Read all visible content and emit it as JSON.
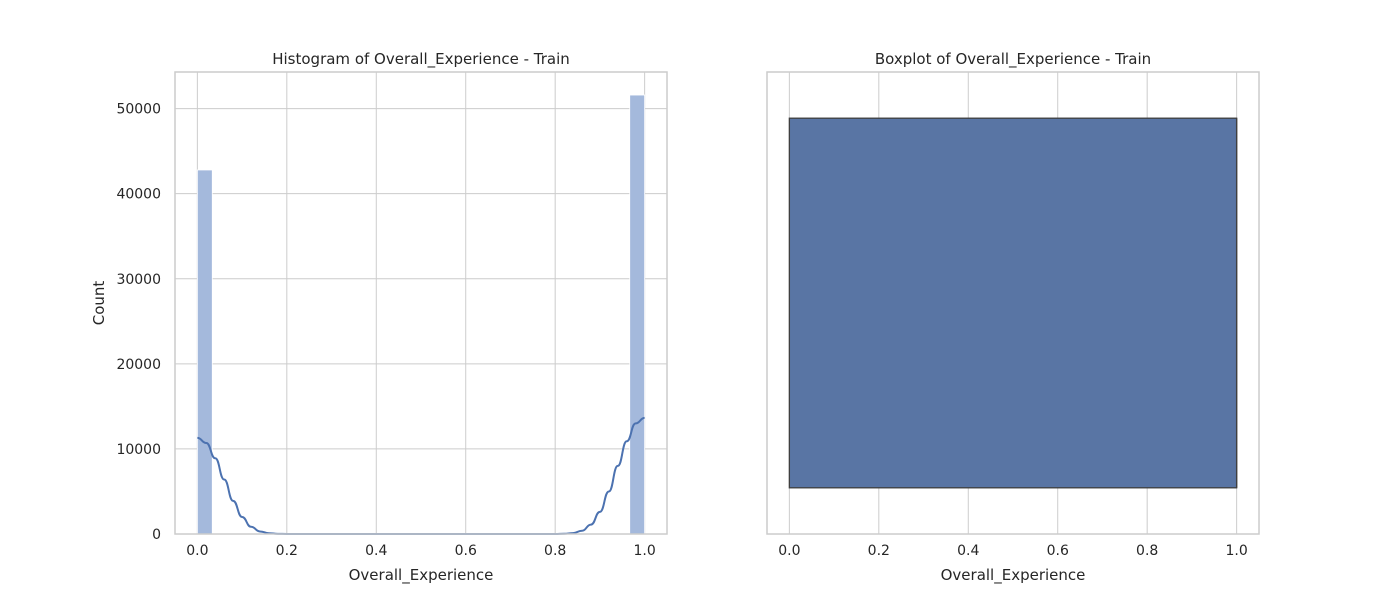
{
  "colors": {
    "hist_bar": "#a4b9dc",
    "kde_line": "#4c72b0",
    "box_fill": "#5975a4",
    "box_edge": "#3f3f3f",
    "grid": "#cccccc",
    "text": "#262626"
  },
  "chart_data": [
    {
      "type": "bar",
      "title": "Histogram of Overall_Experience - Train",
      "xlabel": "Overall_Experience",
      "ylabel": "Count",
      "xlim": [
        -0.05,
        1.05
      ],
      "ylim": [
        0,
        54300
      ],
      "grid": true,
      "xticks": [
        0.0,
        0.2,
        0.4,
        0.6,
        0.8,
        1.0
      ],
      "xtick_labels": [
        "0.0",
        "0.2",
        "0.4",
        "0.6",
        "0.8",
        "1.0"
      ],
      "yticks": [
        0,
        10000,
        20000,
        30000,
        40000,
        50000
      ],
      "ytick_labels": [
        "0",
        "10000",
        "20000",
        "30000",
        "40000",
        "50000"
      ],
      "bins": [
        {
          "x0": 0.0,
          "x1": 0.0333,
          "value": 42786
        },
        {
          "x0": 0.9667,
          "x1": 1.0,
          "value": 51593
        }
      ],
      "kde": {
        "x": [
          0.0,
          0.02,
          0.04,
          0.06,
          0.08,
          0.1,
          0.12,
          0.14,
          0.16,
          0.18,
          0.2,
          0.3,
          0.5,
          0.7,
          0.8,
          0.82,
          0.84,
          0.86,
          0.88,
          0.9,
          0.92,
          0.94,
          0.96,
          0.98,
          1.0
        ],
        "y": [
          11300,
          10700,
          8900,
          6400,
          3900,
          2000,
          850,
          300,
          90,
          20,
          5,
          0,
          0,
          0,
          5,
          25,
          110,
          380,
          1100,
          2600,
          5000,
          8000,
          10900,
          13000,
          13650
        ]
      }
    },
    {
      "type": "box",
      "title": "Boxplot of Overall_Experience - Train",
      "xlabel": "Overall_Experience",
      "ylabel": "",
      "xlim": [
        -0.05,
        1.05
      ],
      "grid": true,
      "xticks": [
        0.0,
        0.2,
        0.4,
        0.6,
        0.8,
        1.0
      ],
      "xtick_labels": [
        "0.0",
        "0.2",
        "0.4",
        "0.6",
        "0.8",
        "1.0"
      ],
      "box": {
        "min": 0,
        "q1": 0,
        "median": 1,
        "q3": 1,
        "max": 1
      }
    }
  ]
}
